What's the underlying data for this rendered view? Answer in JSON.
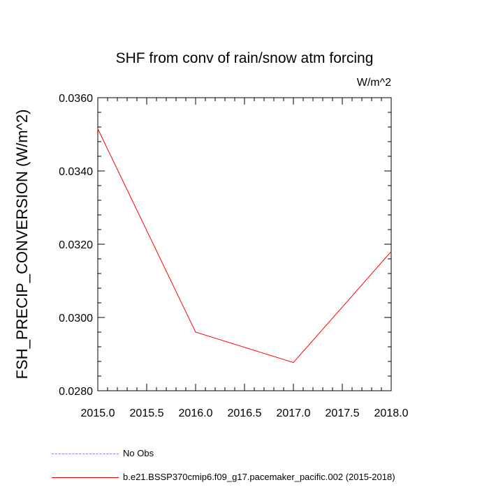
{
  "chart_data": {
    "type": "line",
    "title": "SHF from conv of rain/snow atm forcing",
    "units": "W/m^2",
    "ylabel": "FSH_PRECIP_CONVERSION  (W/m^2)",
    "xlabel": "",
    "xlim": [
      2015.0,
      2018.0
    ],
    "ylim": [
      0.028,
      0.036
    ],
    "xticks": [
      "2015.0",
      "2015.5",
      "2016.0",
      "2016.5",
      "2017.0",
      "2017.5",
      "2018.0"
    ],
    "yticks": [
      "0.0280",
      "0.0300",
      "0.0320",
      "0.0340",
      "0.0360"
    ],
    "grid": false,
    "legend_position": "bottom",
    "series": [
      {
        "name": "b.e21.BSSP370cmip6.f09_g17.pacemaker_pacific.002 (2015-2018)",
        "color": "#ff0000",
        "style": "solid",
        "x": [
          2015.0,
          2016.0,
          2017.0,
          2018.0
        ],
        "y": [
          0.03515,
          0.0296,
          0.02877,
          0.0318
        ]
      }
    ],
    "legend": [
      {
        "label": "No Obs",
        "color": "#7f7fff",
        "style": "dashed"
      },
      {
        "label": "b.e21.BSSP370cmip6.f09_g17.pacemaker_pacific.002 (2015-2018)",
        "color": "#ff0000",
        "style": "solid"
      }
    ]
  }
}
